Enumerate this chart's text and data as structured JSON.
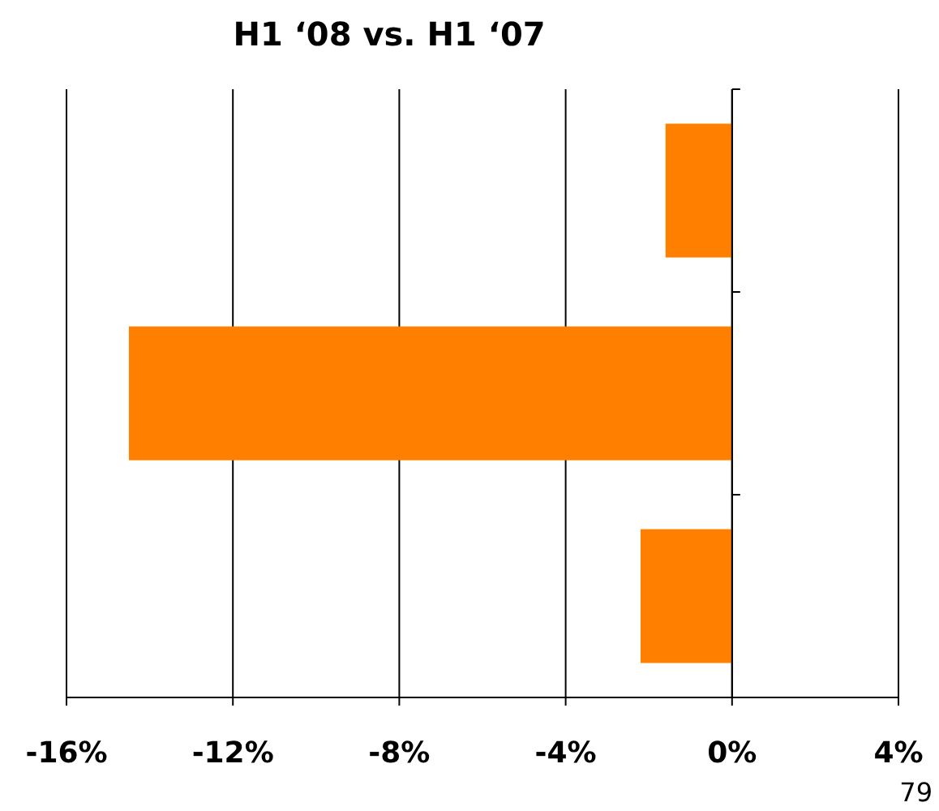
{
  "chart_data": {
    "type": "bar",
    "title": "H1 ‘08 vs. H1 ‘07",
    "orientation": "horizontal",
    "categories": [
      null,
      null,
      null
    ],
    "values": [
      -1.6,
      -14.5,
      -2.2
    ],
    "color": "#ff8000",
    "xlim": [
      -16,
      4
    ],
    "xticks": [
      {
        "value": -16,
        "label": "-16%"
      },
      {
        "value": -12,
        "label": "-12%"
      },
      {
        "value": -8,
        "label": "-8%"
      },
      {
        "value": -4,
        "label": "-4%"
      },
      {
        "value": 0,
        "label": "0%"
      },
      {
        "value": 4,
        "label": "4%"
      }
    ],
    "grid": "x",
    "annotations": [
      "79"
    ]
  }
}
